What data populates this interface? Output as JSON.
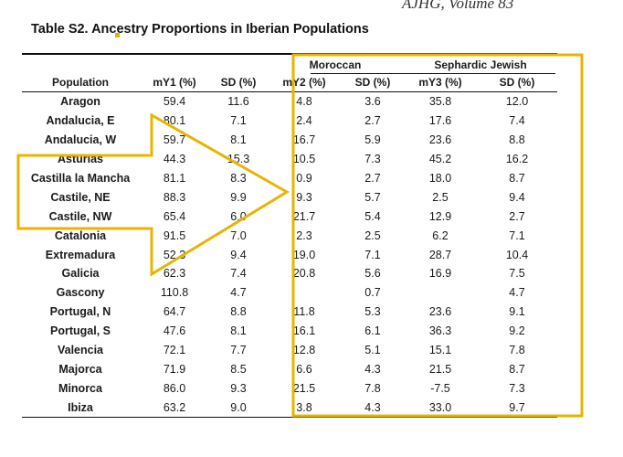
{
  "journal_header": "AJHG, Volume 83",
  "title": "Table S2. Ancestry Proportions in Iberian Populations",
  "group_headers": {
    "moroccan": "Moroccan",
    "sephardic": "Sephardic Jewish"
  },
  "columns": [
    "Population",
    "mY1 (%)",
    "SD (%)",
    "mY2 (%)",
    "SD (%)",
    "mY3 (%)",
    "SD (%)"
  ],
  "rows": [
    [
      "Aragon",
      "59.4",
      "11.6",
      "4.8",
      "3.6",
      "35.8",
      "12.0"
    ],
    [
      "Andalucia, E",
      "80.1",
      "7.1",
      "2.4",
      "2.7",
      "17.6",
      "7.4"
    ],
    [
      "Andalucia, W",
      "59.7",
      "8.1",
      "16.7",
      "5.9",
      "23.6",
      "8.8"
    ],
    [
      "Asturias",
      "44.3",
      "15.3",
      "10.5",
      "7.3",
      "45.2",
      "16.2"
    ],
    [
      "Castilla la Mancha",
      "81.1",
      "8.3",
      "0.9",
      "2.7",
      "18.0",
      "8.7"
    ],
    [
      "Castile, NE",
      "88.3",
      "9.9",
      "9.3",
      "5.7",
      "2.5",
      "9.4"
    ],
    [
      "Castile, NW",
      "65.4",
      "6.0",
      "21.7",
      "5.4",
      "12.9",
      "2.7"
    ],
    [
      "Catalonia",
      "91.5",
      "7.0",
      "2.3",
      "2.5",
      "6.2",
      "7.1"
    ],
    [
      "Extremadura",
      "52.3",
      "9.4",
      "19.0",
      "7.1",
      "28.7",
      "10.4"
    ],
    [
      "Galicia",
      "62.3",
      "7.4",
      "20.8",
      "5.6",
      "16.9",
      "7.5"
    ],
    [
      "Gascony",
      "110.8",
      "4.7",
      "",
      "0.7",
      "",
      "4.7"
    ],
    [
      "Portugal, N",
      "64.7",
      "8.8",
      "11.8",
      "5.3",
      "23.6",
      "9.1"
    ],
    [
      "Portugal, S",
      "47.6",
      "8.1",
      "16.1",
      "6.1",
      "36.3",
      "9.2"
    ],
    [
      "Valencia",
      "72.1",
      "7.7",
      "12.8",
      "5.1",
      "15.1",
      "7.8"
    ],
    [
      "Majorca",
      "71.9",
      "8.5",
      "6.6",
      "4.3",
      "21.5",
      "8.7"
    ],
    [
      "Minorca",
      "86.0",
      "9.3",
      "21.5",
      "7.8",
      "-7.5",
      "7.3"
    ],
    [
      "Ibiza",
      "63.2",
      "9.0",
      "3.8",
      "4.3",
      "33.0",
      "9.7"
    ]
  ],
  "annotation_color": "#e8b400"
}
